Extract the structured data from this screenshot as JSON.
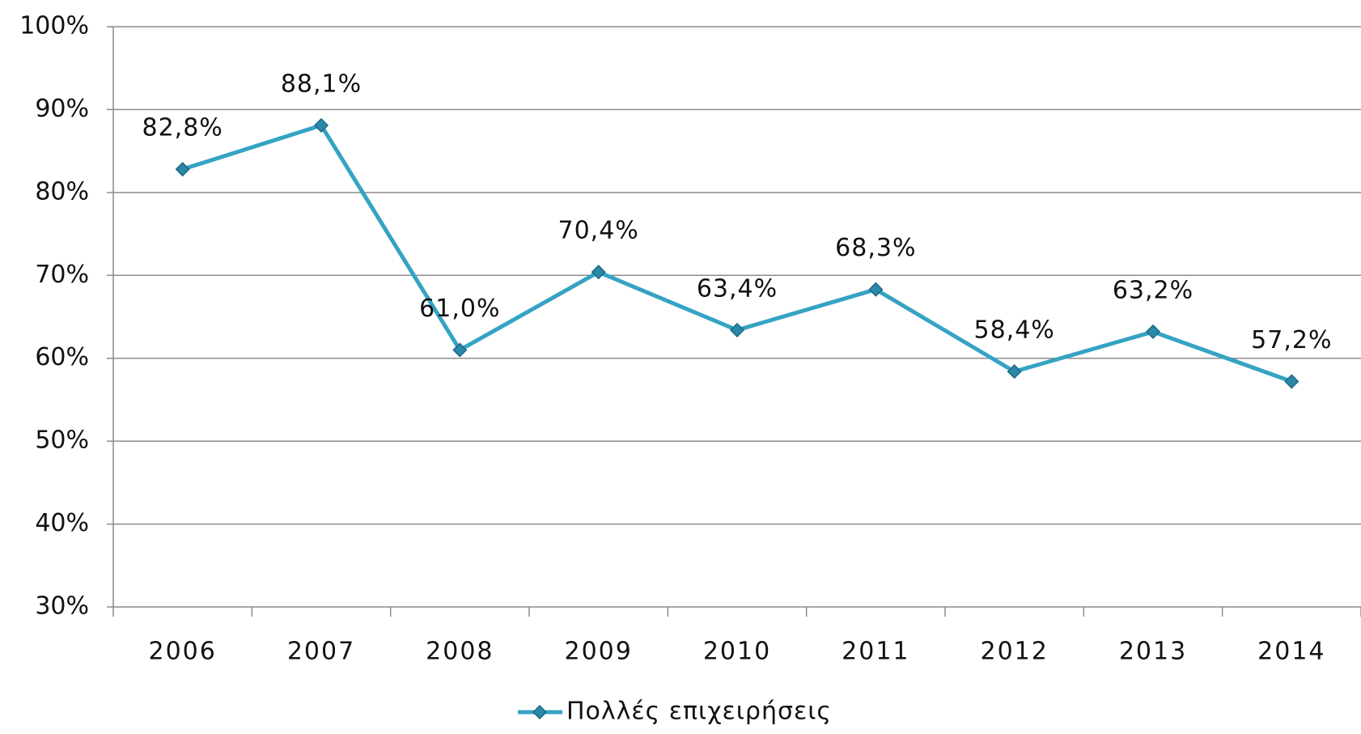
{
  "chart_data": {
    "type": "line",
    "categories": [
      "2006",
      "2007",
      "2008",
      "2009",
      "2010",
      "2011",
      "2012",
      "2013",
      "2014"
    ],
    "series": [
      {
        "name": "Πολλές επιχειρήσεις",
        "color": "#35a3c3",
        "values": [
          82.8,
          88.1,
          61.0,
          70.4,
          63.4,
          68.3,
          58.4,
          63.2,
          57.2
        ],
        "value_labels": [
          "82,8%",
          "88,1%",
          "61,0%",
          "70,4%",
          "63,4%",
          "68,3%",
          "58,4%",
          "63,2%",
          "57,2%"
        ]
      }
    ],
    "ylim": [
      30,
      100
    ],
    "yticks": [
      {
        "value": 30,
        "label": "30%"
      },
      {
        "value": 40,
        "label": "40%"
      },
      {
        "value": 50,
        "label": "50%"
      },
      {
        "value": 60,
        "label": "60%"
      },
      {
        "value": 70,
        "label": "70%"
      },
      {
        "value": 80,
        "label": "80%"
      },
      {
        "value": 90,
        "label": "90%"
      },
      {
        "value": 100,
        "label": "100%"
      }
    ],
    "grid": true,
    "legend": "bottom"
  }
}
